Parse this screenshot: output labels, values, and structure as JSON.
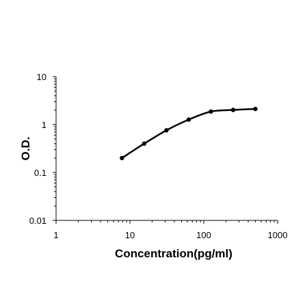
{
  "chart_data": {
    "type": "line",
    "title": "",
    "xlabel": "Concentration(pg/ml)",
    "ylabel": "O.D.",
    "x_scale": "log",
    "y_scale": "log",
    "xlim": [
      1,
      1000
    ],
    "ylim": [
      0.01,
      10
    ],
    "x_ticks": [
      "1",
      "10",
      "100",
      "1000"
    ],
    "y_ticks": [
      "0.01",
      "0.1",
      "1",
      "10"
    ],
    "grid": false,
    "legend": "none",
    "series": [
      {
        "x": [
          7.8,
          15.6,
          31.25,
          62.5,
          125,
          250,
          500
        ],
        "y": [
          0.2,
          0.4,
          0.76,
          1.27,
          1.87,
          2.02,
          2.12
        ]
      }
    ],
    "colors": {
      "line": "#000000",
      "marker": "#000000",
      "axis": "#000000"
    }
  }
}
